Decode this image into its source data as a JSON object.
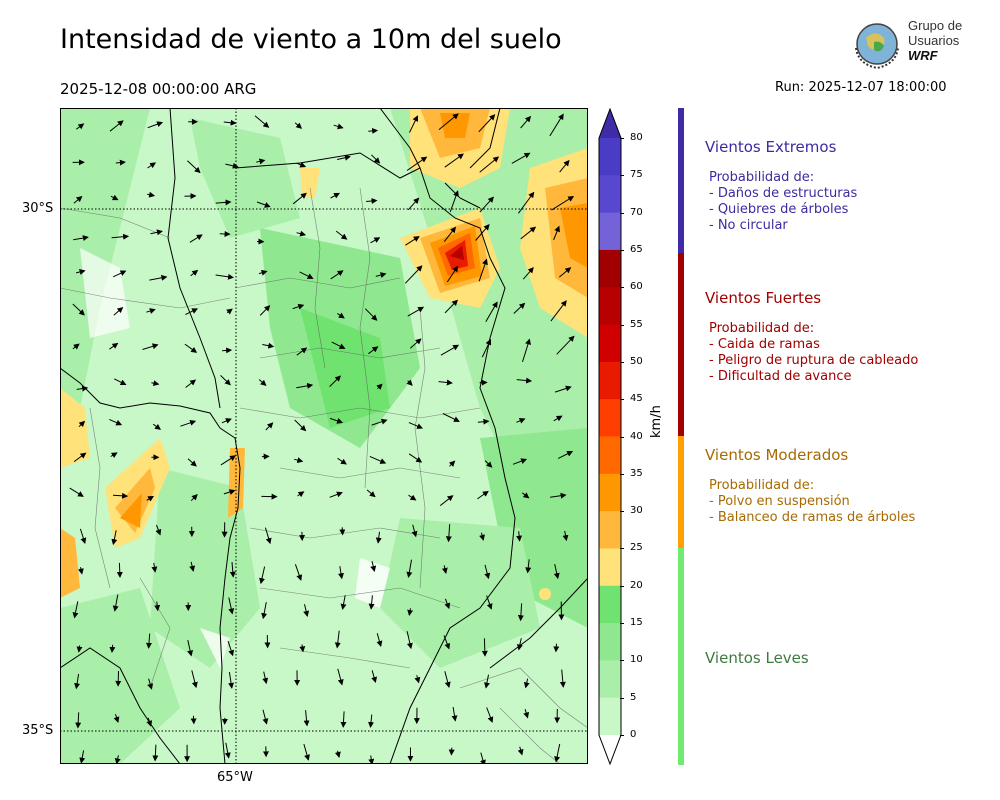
{
  "header": {
    "title": "Intensidad de viento a 10m del suelo",
    "valid_time": "2025-12-08 00:00:00 ARG",
    "run": "Run: 2025-12-07 18:00:00"
  },
  "logo": {
    "line1": "Grupo de",
    "line2": "Usuarios",
    "line3": "WRF"
  },
  "map": {
    "lat_labels": [
      "30°S",
      "35°S"
    ],
    "lon_labels": [
      "65°W"
    ]
  },
  "colorbar": {
    "unit": "km/h",
    "ticks": [
      "80",
      "75",
      "70",
      "65",
      "60",
      "55",
      "50",
      "45",
      "40",
      "35",
      "30",
      "25",
      "20",
      "15",
      "10",
      "5",
      "0"
    ],
    "colors": [
      "#3f2aa8",
      "#4a3cc4",
      "#5748cf",
      "#7462d8",
      "#a00000",
      "#b80000",
      "#d00000",
      "#e81a00",
      "#ff3f00",
      "#ff6900",
      "#ff9800",
      "#ffb83c",
      "#ffe27a",
      "#6fe26f",
      "#8fe88f",
      "#a9efa9",
      "#c8f7c8",
      "#ffffff"
    ]
  },
  "categories": [
    {
      "title": "Vientos Extremos",
      "color": "#3d2aa0",
      "band_color": "#3f2aa8",
      "desc_header": "Probabilidad de:",
      "items": [
        "- Daños de estructuras",
        "- Quiebres de árboles",
        "- No circular"
      ]
    },
    {
      "title": "Vientos Fuertes",
      "color": "#a00000",
      "band_color": "#a00000",
      "desc_header": "Probabilidad de:",
      "items": [
        "- Caida de ramas",
        "- Peligro de ruptura de cableado",
        "- Dificultad de avance"
      ]
    },
    {
      "title": "Vientos Moderados",
      "color": "#a86a00",
      "band_color": "#ff9f00",
      "desc_header": "Probabilidad de:",
      "items": [
        "- Polvo en suspensión",
        "- Balanceo de ramas de árboles"
      ]
    },
    {
      "title": "Vientos Leves",
      "color": "#3d7a3d",
      "band_color": "#70ea70"
    }
  ]
}
